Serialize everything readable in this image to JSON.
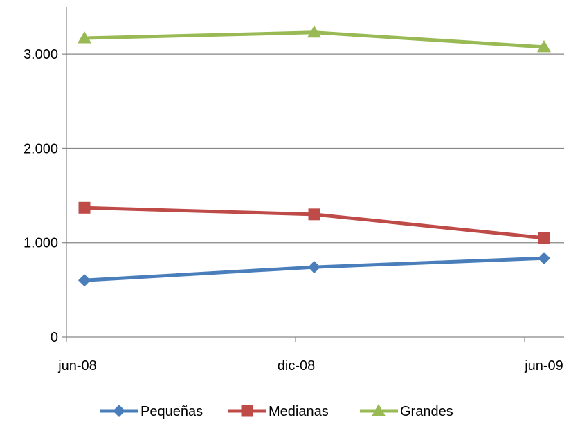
{
  "chart_data": {
    "type": "line",
    "categories": [
      "jun-08",
      "dic-08",
      "jun-09"
    ],
    "series": [
      {
        "name": "Pequeñas",
        "values": [
          600,
          740,
          835
        ],
        "color": "#4A7EBB",
        "marker": "diamond"
      },
      {
        "name": "Medianas",
        "values": [
          1370,
          1300,
          1050
        ],
        "color": "#BE4B48",
        "marker": "square"
      },
      {
        "name": "Grandes",
        "values": [
          3170,
          3230,
          3075
        ],
        "color": "#98B954",
        "marker": "triangle"
      }
    ],
    "y_ticks": [
      {
        "value": 0,
        "label": "0"
      },
      {
        "value": 1000,
        "label": "1.000"
      },
      {
        "value": 2000,
        "label": "2.000"
      },
      {
        "value": 3000,
        "label": "3.000"
      }
    ],
    "ylim": [
      0,
      3500
    ],
    "grid": true,
    "legend_position": "bottom",
    "gridline_color": "#868686",
    "axis_color": "#868686"
  }
}
